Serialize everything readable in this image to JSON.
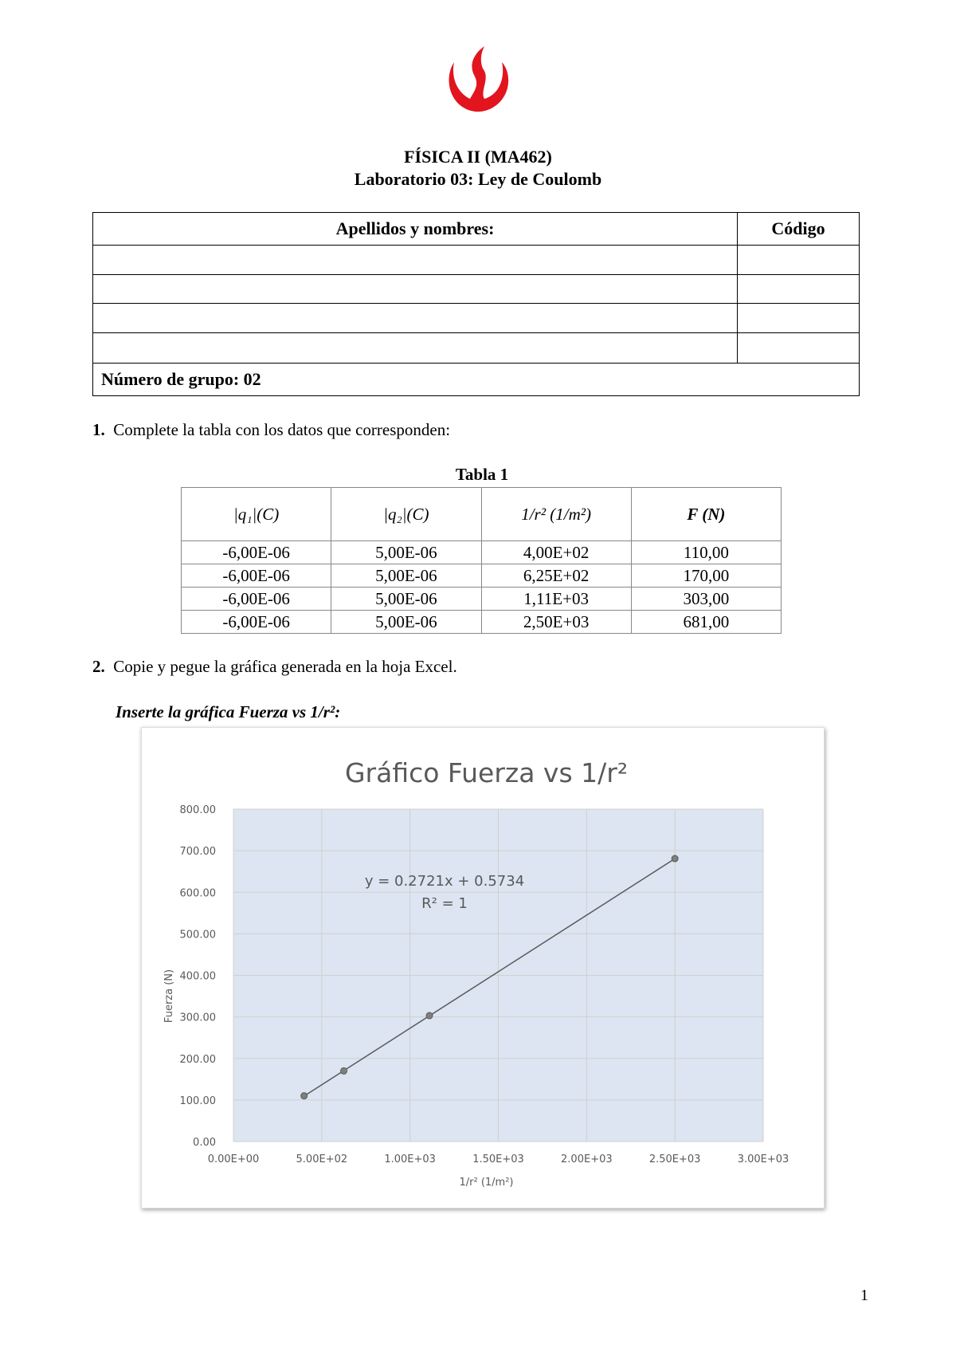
{
  "header": {
    "logo": "upc-flame-logo",
    "logo_color": "#E2141E",
    "course": "FÍSICA II (MA462)",
    "lab": "Laboratorio 03: Ley de Coulomb"
  },
  "student_table": {
    "col_names": "Apellidos y nombres:",
    "col_code": "Código",
    "rows": [
      [
        "",
        ""
      ],
      [
        "",
        ""
      ],
      [
        "",
        ""
      ],
      [
        "",
        ""
      ]
    ],
    "group": "Número de grupo: 02"
  },
  "q1": {
    "number": "1.",
    "text": "Complete la tabla con los datos que corresponden:",
    "table_title": "Tabla 1",
    "headers": [
      "|q₁|(C)",
      "|q₂|(C)",
      "1/r² (1/m²)",
      "F (N)"
    ],
    "rows": [
      [
        "-6,00E-06",
        "5,00E-06",
        "4,00E+02",
        "110,00"
      ],
      [
        "-6,00E-06",
        "5,00E-06",
        "6,25E+02",
        "170,00"
      ],
      [
        "-6,00E-06",
        "5,00E-06",
        "1,11E+03",
        "303,00"
      ],
      [
        "-6,00E-06",
        "5,00E-06",
        "2,50E+03",
        "681,00"
      ]
    ]
  },
  "q2": {
    "number": "2.",
    "text": "Copie y pegue la gráfica generada en la hoja Excel.",
    "instruction": "Inserte la gráfica Fuerza vs 1/r²:"
  },
  "chart_data": {
    "type": "scatter",
    "title": "Gráfico Fuerza vs 1/r²",
    "xlabel": "1/r² (1/m²)",
    "ylabel": "Fuerza (N)",
    "x": [
      400,
      625,
      1110,
      2500
    ],
    "y": [
      110,
      170,
      303,
      681
    ],
    "xlim": [
      0,
      3000
    ],
    "ylim": [
      0,
      800
    ],
    "xticks": [
      "0.00E+00",
      "5.00E+02",
      "1.00E+03",
      "1.50E+03",
      "2.00E+03",
      "2.50E+03",
      "3.00E+03"
    ],
    "yticks": [
      "0.00",
      "100.00",
      "200.00",
      "300.00",
      "400.00",
      "500.00",
      "600.00",
      "700.00",
      "800.00"
    ],
    "trendline": {
      "type": "linear",
      "slope": 0.2721,
      "intercept": 0.5734,
      "equation": "y = 0.2721x + 0.5734",
      "r2": "R² = 1"
    },
    "grid": true,
    "plot_background": "#DCE5F1",
    "marker_color": "#7F7F7F",
    "line_color": "#595959"
  },
  "page_number": "1"
}
